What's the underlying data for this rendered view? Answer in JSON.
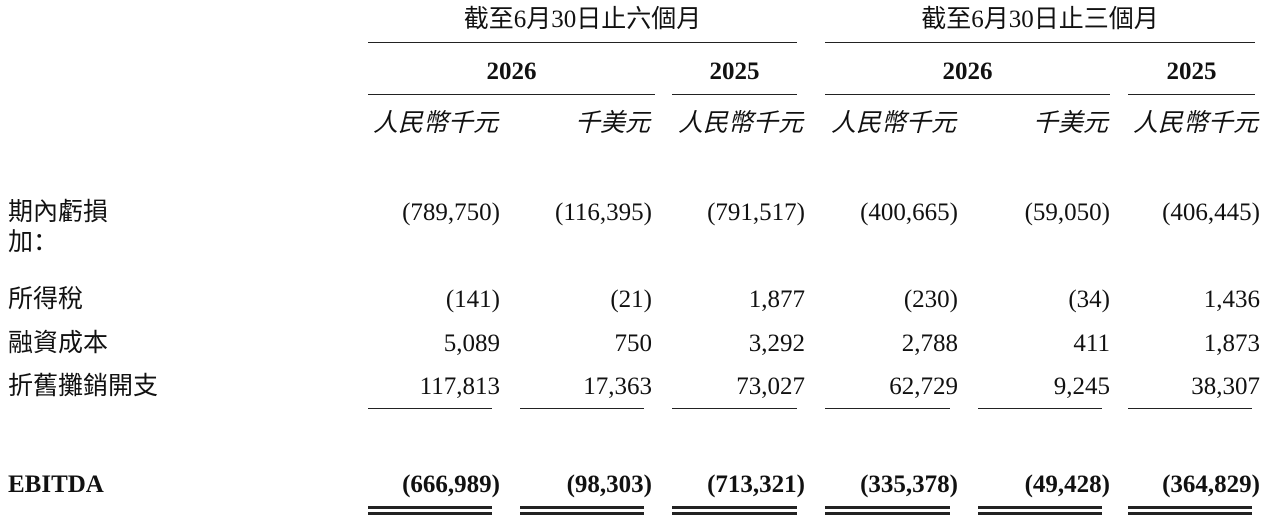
{
  "table": {
    "period_headers": [
      "截至6月30日止六個月",
      "截至6月30日止三個月"
    ],
    "year_headers": [
      "2026",
      "2025",
      "2026",
      "2025"
    ],
    "unit_headers": [
      "人民幣千元",
      "千美元",
      "人民幣千元",
      "人民幣千元",
      "千美元",
      "人民幣千元"
    ],
    "rows": [
      {
        "label": "期內虧損",
        "values": [
          "(789,750)",
          "(116,395)",
          "(791,517)",
          "(400,665)",
          "(59,050)",
          "(406,445)"
        ]
      },
      {
        "label": "加："
      },
      {
        "label": "所得稅",
        "values": [
          "(141)",
          "(21)",
          "1,877",
          "(230)",
          "(34)",
          "1,436"
        ]
      },
      {
        "label": "融資成本",
        "values": [
          "5,089",
          "750",
          "3,292",
          "2,788",
          "411",
          "1,873"
        ]
      },
      {
        "label": "折舊攤銷開支",
        "values": [
          "117,813",
          "17,363",
          "73,027",
          "62,729",
          "9,245",
          "38,307"
        ]
      },
      {
        "label": "EBITDA",
        "values": [
          "(666,989)",
          "(98,303)",
          "(713,321)",
          "(335,378)",
          "(49,428)",
          "(364,829)"
        ]
      }
    ]
  }
}
